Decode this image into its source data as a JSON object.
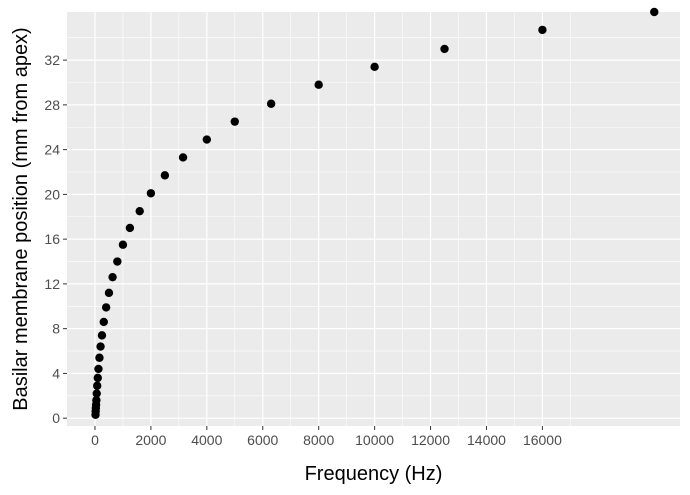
{
  "chart_data": {
    "type": "scatter",
    "xlabel": "Frequency (Hz)",
    "ylabel": "Basilar membrane position (mm from apex)",
    "xlim": [
      -1000,
      20920
    ],
    "ylim": [
      -0.7,
      36.3
    ],
    "x_ticks": [
      0,
      2000,
      4000,
      6000,
      8000,
      10000,
      12000,
      14000,
      16000
    ],
    "x_tick_labels": [
      "0",
      "2000",
      "4000",
      "6000",
      "8000",
      "10000",
      "12000",
      "14000",
      "16000"
    ],
    "y_ticks": [
      0,
      4,
      8,
      12,
      16,
      20,
      24,
      28,
      32
    ],
    "y_tick_labels": [
      "0",
      "4",
      "8",
      "12",
      "16",
      "20",
      "24",
      "28",
      "32"
    ],
    "grid": true,
    "panel_background": "#ebebeb",
    "grid_color": "#ffffff",
    "point_color": "#000000",
    "points": [
      {
        "x": 20,
        "y": 0.3
      },
      {
        "x": 25,
        "y": 0.6
      },
      {
        "x": 31.5,
        "y": 0.9
      },
      {
        "x": 40,
        "y": 1.2
      },
      {
        "x": 50,
        "y": 1.6
      },
      {
        "x": 63,
        "y": 2.2
      },
      {
        "x": 80,
        "y": 2.9
      },
      {
        "x": 100,
        "y": 3.6
      },
      {
        "x": 125,
        "y": 4.4
      },
      {
        "x": 160,
        "y": 5.4
      },
      {
        "x": 200,
        "y": 6.4
      },
      {
        "x": 250,
        "y": 7.4
      },
      {
        "x": 315,
        "y": 8.6
      },
      {
        "x": 400,
        "y": 9.9
      },
      {
        "x": 500,
        "y": 11.2
      },
      {
        "x": 630,
        "y": 12.6
      },
      {
        "x": 800,
        "y": 14.0
      },
      {
        "x": 1000,
        "y": 15.5
      },
      {
        "x": 1250,
        "y": 17.0
      },
      {
        "x": 1600,
        "y": 18.5
      },
      {
        "x": 2000,
        "y": 20.1
      },
      {
        "x": 2500,
        "y": 21.7
      },
      {
        "x": 3150,
        "y": 23.3
      },
      {
        "x": 4000,
        "y": 24.9
      },
      {
        "x": 5000,
        "y": 26.5
      },
      {
        "x": 6300,
        "y": 28.1
      },
      {
        "x": 8000,
        "y": 29.8
      },
      {
        "x": 10000,
        "y": 31.4
      },
      {
        "x": 12500,
        "y": 33.0
      },
      {
        "x": 16000,
        "y": 34.7
      },
      {
        "x": 20000,
        "y": 36.3
      }
    ]
  }
}
